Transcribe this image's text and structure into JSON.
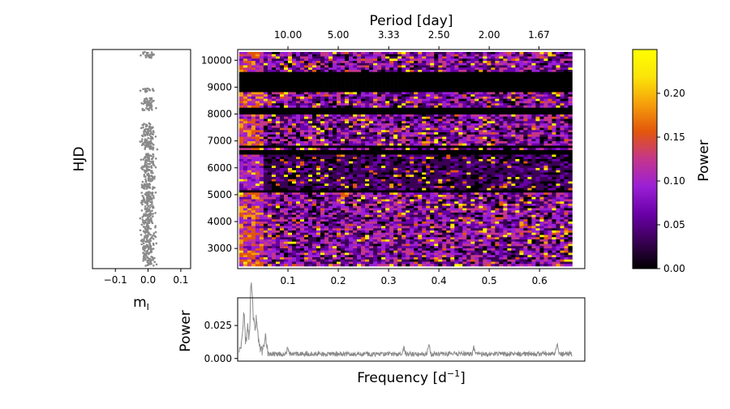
{
  "colors": {
    "scatter": "#8a8a8a",
    "line": "#8a8a8a",
    "cmap": [
      "#000000",
      "#3a0055",
      "#6a00a8",
      "#9b1fd6",
      "#c4368c",
      "#e2560c",
      "#f59e0b",
      "#fbe40a",
      "#ffff00"
    ]
  },
  "chart_data": [
    {
      "id": "light-curve",
      "type": "scatter",
      "xlabel": "m",
      "xlabel_sub": "I",
      "ylabel": "HJD",
      "xlim": [
        -0.17,
        0.13
      ],
      "ylim": [
        2200,
        10400
      ],
      "xticks": [
        -0.1,
        0.0,
        0.1
      ],
      "xtick_labels": [
        "−0.1",
        "0.0",
        "0.1"
      ],
      "ticks_y_shown": false,
      "hjd_segments": [
        [
          2300,
          5080
        ],
        [
          5180,
          6520
        ],
        [
          6640,
          7650
        ],
        [
          8120,
          8230
        ],
        [
          8280,
          8600
        ],
        [
          8800,
          8960
        ],
        [
          10080,
          10310
        ]
      ],
      "x_center": 0.0,
      "x_spread": 0.03
    },
    {
      "id": "dynamic-periodogram",
      "type": "heatmap",
      "title": "Period [day]",
      "xlim": [
        0.0,
        0.69
      ],
      "ylim": [
        2250,
        10400
      ],
      "data_xmax": 0.665,
      "xticks": [
        0.1,
        0.2,
        0.3,
        0.4,
        0.5,
        0.6
      ],
      "xtick_labels": [
        "0.1",
        "0.2",
        "0.3",
        "0.4",
        "0.5",
        "0.6"
      ],
      "yticks": [
        3000,
        4000,
        5000,
        6000,
        7000,
        8000,
        9000,
        10000
      ],
      "ytick_labels": [
        "3000",
        "4000",
        "5000",
        "6000",
        "7000",
        "8000",
        "9000",
        "10000"
      ],
      "period_ticks": [
        10.0,
        5.0,
        3.33,
        2.5,
        2.0,
        1.67
      ],
      "period_tick_labels": [
        "10.00",
        "5.00",
        "3.33",
        "2.50",
        "2.00",
        "1.67"
      ],
      "gaps": [
        [
          8780,
          9550
        ],
        [
          8150,
          8240
        ],
        [
          8010,
          8120
        ],
        [
          6720,
          6800
        ],
        [
          6520,
          6620
        ],
        [
          5050,
          5150
        ]
      ],
      "power_range": [
        0,
        0.25
      ]
    },
    {
      "id": "colorbar",
      "type": "colorbar",
      "label": "Power",
      "range": [
        0,
        0.25
      ],
      "ticks": [
        0.0,
        0.05,
        0.1,
        0.15,
        0.2
      ],
      "tick_labels": [
        "0.00",
        "0.05",
        "0.10",
        "0.15",
        "0.20"
      ]
    },
    {
      "id": "mean-periodogram",
      "type": "line",
      "xlabel": "Frequency [d",
      "xlabel_sup": "−1",
      "xlabel_end": "]",
      "ylabel": "Power",
      "xlim": [
        0.0,
        0.69
      ],
      "ylim": [
        -0.002,
        0.046
      ],
      "yticks": [
        0.0,
        0.025
      ],
      "ytick_labels": [
        "0.000",
        "0.025"
      ],
      "data_xmax": 0.665,
      "peaks": [
        {
          "x": 0.01,
          "y": 0.012
        },
        {
          "x": 0.013,
          "y": 0.027
        },
        {
          "x": 0.02,
          "y": 0.02
        },
        {
          "x": 0.026,
          "y": 0.03
        },
        {
          "x": 0.028,
          "y": 0.044
        },
        {
          "x": 0.032,
          "y": 0.027
        },
        {
          "x": 0.037,
          "y": 0.022
        },
        {
          "x": 0.04,
          "y": 0.012
        },
        {
          "x": 0.055,
          "y": 0.01
        },
        {
          "x": 0.1,
          "y": 0.006
        },
        {
          "x": 0.33,
          "y": 0.005
        },
        {
          "x": 0.38,
          "y": 0.009
        },
        {
          "x": 0.47,
          "y": 0.006
        },
        {
          "x": 0.635,
          "y": 0.01
        }
      ],
      "baseline": 0.004
    }
  ]
}
